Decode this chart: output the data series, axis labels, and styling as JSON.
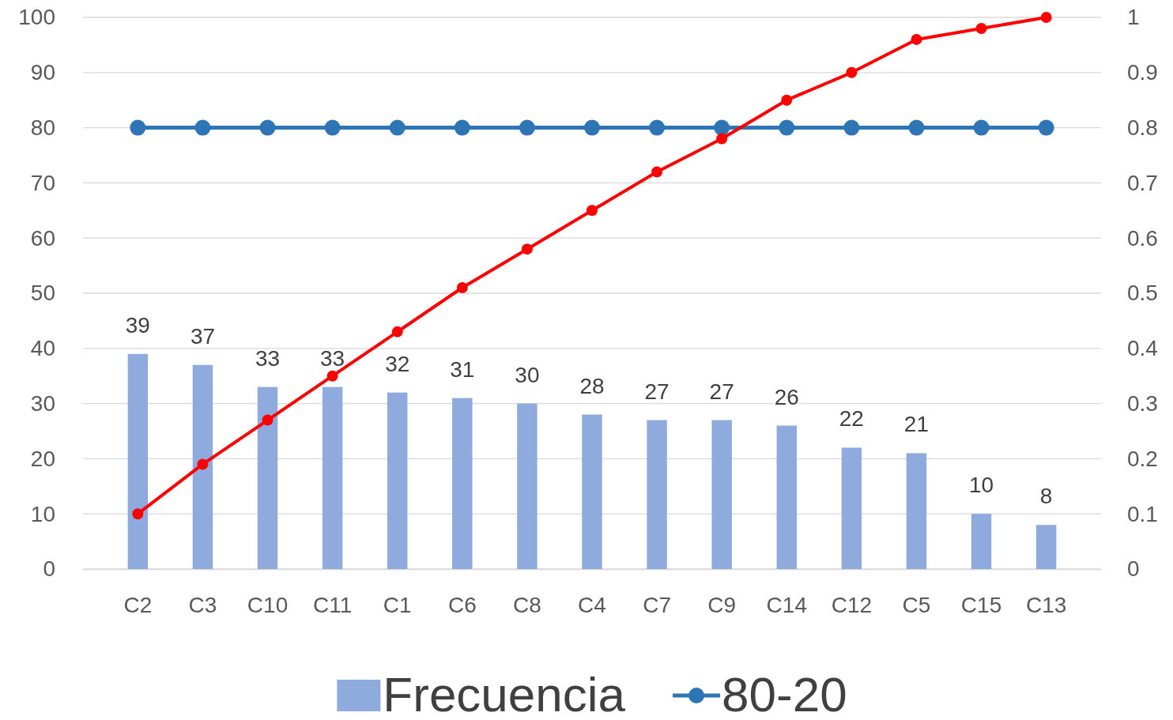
{
  "chart_data": {
    "type": "bar",
    "categories": [
      "C2",
      "C3",
      "C10",
      "C11",
      "C1",
      "C6",
      "C8",
      "C4",
      "C7",
      "C9",
      "C14",
      "C12",
      "C5",
      "C15",
      "C13"
    ],
    "series": [
      {
        "name": "Frecuencia",
        "color": "#8faadc",
        "values": [
          39,
          37,
          33,
          33,
          32,
          31,
          30,
          28,
          27,
          27,
          26,
          22,
          21,
          10,
          8
        ],
        "value_labels": [
          "39",
          "37",
          "33",
          "33",
          "32",
          "31",
          "30",
          "28",
          "27",
          "27",
          "26",
          "22",
          "21",
          "10",
          "8"
        ]
      },
      {
        "name": "80-20",
        "type": "line",
        "color": "#2e75b6",
        "marker": "circle",
        "values": [
          80,
          80,
          80,
          80,
          80,
          80,
          80,
          80,
          80,
          80,
          80,
          80,
          80,
          80,
          80
        ]
      },
      {
        "type": "line",
        "axis": "y2",
        "color": "#ff0000",
        "marker": "circle",
        "values": [
          0.1,
          0.19,
          0.27,
          0.35,
          0.43,
          0.51,
          0.58,
          0.65,
          0.72,
          0.78,
          0.85,
          0.9,
          0.96,
          0.98,
          1
        ]
      }
    ],
    "ylim": [
      0,
      100
    ],
    "yticks": [
      0,
      10,
      20,
      30,
      40,
      50,
      60,
      70,
      80,
      90,
      100
    ],
    "y2lim": [
      0,
      1
    ],
    "y2ticks": [
      0,
      0.1,
      0.2,
      0.3,
      0.4,
      0.5,
      0.6,
      0.7,
      0.8,
      0.9,
      1
    ],
    "grid": "y",
    "legend": "bottom"
  }
}
